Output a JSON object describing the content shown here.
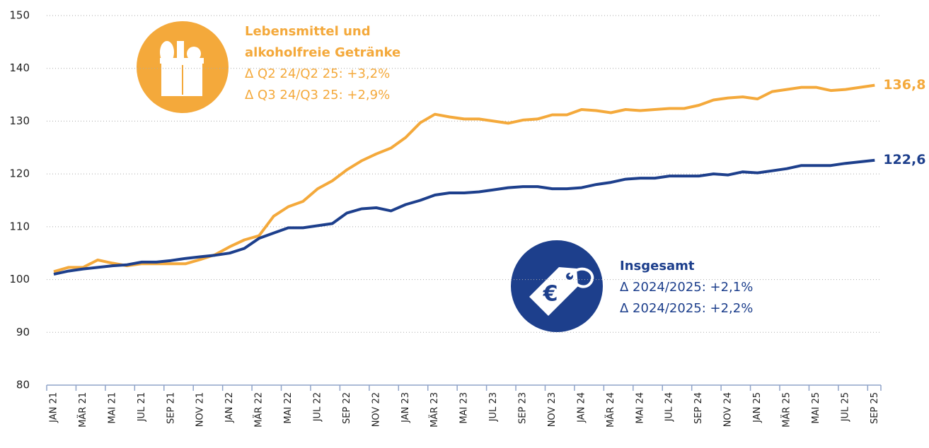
{
  "chart_data": {
    "type": "line",
    "categories": [
      "JAN 21",
      null,
      "MÄR 21",
      null,
      "MAI 21",
      null,
      "JUL 21",
      null,
      "SEP 21",
      null,
      "NOV 21",
      null,
      "JAN 22",
      null,
      "MÄR 22",
      null,
      "MAI 22",
      null,
      "JUL 22",
      null,
      "SEP 22",
      null,
      "NOV 22",
      null,
      "JAN 23",
      null,
      "MÄR 23",
      null,
      "MAI 23",
      null,
      "JUL 23",
      null,
      "SEP 23",
      null,
      "NOV 23",
      null,
      "JAN 24",
      null,
      "MÄR 24",
      null,
      "MAI 24",
      null,
      "JUL 24",
      null,
      "SEP 24",
      null,
      "NOV 24",
      null,
      "JAN 25",
      null,
      "MÄR 25",
      null,
      "MAI 25",
      null,
      "JUL 25",
      null,
      "SEP 25"
    ],
    "series": [
      {
        "name": "Lebensmittel und alkoholfreie Getränke",
        "color": "#f4a93b",
        "values": [
          101.5,
          102.3,
          102.3,
          103.7,
          103.1,
          102.6,
          103.0,
          103.0,
          103.0,
          103.0,
          103.8,
          104.7,
          106.2,
          107.5,
          108.3,
          112.0,
          113.8,
          114.8,
          117.2,
          118.7,
          120.8,
          122.5,
          123.8,
          124.9,
          126.9,
          129.7,
          131.3,
          130.8,
          130.4,
          130.4,
          130.0,
          129.6,
          130.2,
          130.4,
          131.2,
          131.2,
          132.2,
          132.0,
          131.6,
          132.2,
          132.0,
          132.2,
          132.4,
          132.4,
          133.0,
          134.0,
          134.4,
          134.6,
          134.2,
          135.6,
          136.0,
          136.4,
          136.4,
          135.8,
          136.0,
          136.4,
          136.8
        ],
        "end_label": "136,8",
        "annotation": [
          "Lebensmittel und",
          "alkoholfreie Getränke",
          "Δ Q2 24/Q2 25: +3,2%",
          "Δ Q3 24/Q3 25: +2,9%"
        ]
      },
      {
        "name": "Insgesamt",
        "color": "#1d3f8c",
        "values": [
          101.0,
          101.6,
          102.0,
          102.3,
          102.6,
          102.8,
          103.3,
          103.3,
          103.6,
          104.0,
          104.3,
          104.6,
          105.0,
          105.9,
          107.8,
          108.8,
          109.8,
          109.8,
          110.2,
          110.6,
          112.6,
          113.4,
          113.6,
          113.0,
          114.2,
          115.0,
          116.0,
          116.4,
          116.4,
          116.6,
          117.0,
          117.4,
          117.6,
          117.6,
          117.2,
          117.2,
          117.4,
          118.0,
          118.4,
          119.0,
          119.2,
          119.2,
          119.6,
          119.6,
          119.6,
          120.0,
          119.8,
          120.4,
          120.2,
          120.6,
          121.0,
          121.6,
          121.6,
          121.6,
          122.0,
          122.3,
          122.6
        ],
        "end_label": "122,6",
        "annotation": [
          "Insgesamt",
          "Δ 2024/2025: +2,1%",
          "Δ 2024/2025: +2,2%"
        ]
      }
    ],
    "ylim": [
      80,
      150
    ],
    "yticks": [
      80,
      90,
      100,
      110,
      120,
      130,
      140,
      150
    ],
    "grid": true
  }
}
